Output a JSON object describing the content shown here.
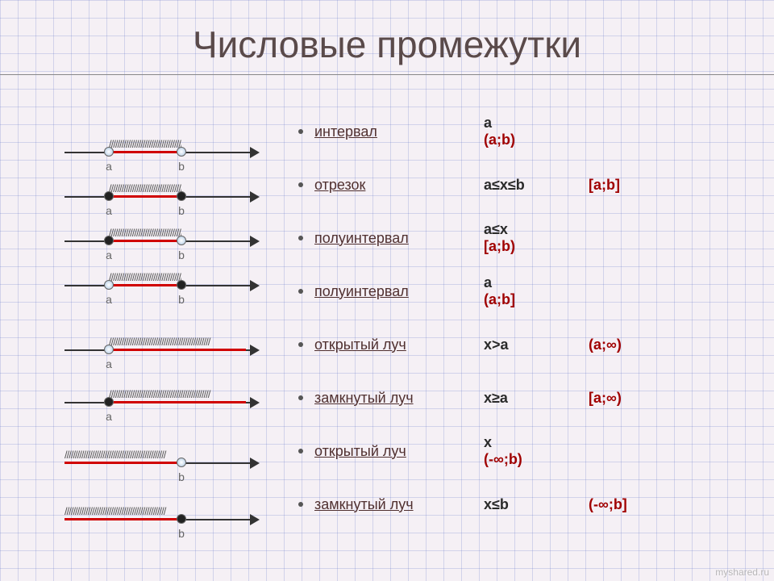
{
  "title": "Числовые промежутки",
  "watermark": "myshared.ru",
  "layout": {
    "diagram_x_a": 55,
    "diagram_x_b": 145,
    "diagram_width": 240,
    "diagram_heights": [
      40,
      95,
      150,
      205,
      285,
      350,
      425,
      495
    ]
  },
  "colors": {
    "axis": "#333333",
    "segment": "#d00000",
    "notation": "#a00000",
    "label": "#666666",
    "title": "#5a4a4a"
  },
  "rows": [
    {
      "name": "интервал",
      "inequality": "a<x<b",
      "notation": "(a;b)",
      "left": {
        "pos": 55,
        "type": "open",
        "label": "a"
      },
      "right": {
        "pos": 145,
        "type": "open",
        "label": "b"
      },
      "seg": [
        55,
        145
      ],
      "hatch": [
        55,
        145
      ]
    },
    {
      "name": "отрезок",
      "inequality": "a≤x≤b",
      "notation": "[a;b]",
      "left": {
        "pos": 55,
        "type": "closed",
        "label": "a"
      },
      "right": {
        "pos": 145,
        "type": "closed",
        "label": "b"
      },
      "seg": [
        55,
        145
      ],
      "hatch": [
        55,
        145
      ]
    },
    {
      "name": "полуинтервал",
      "inequality": "a≤x<b",
      "notation": "[a;b)",
      "left": {
        "pos": 55,
        "type": "closed",
        "label": "a"
      },
      "right": {
        "pos": 145,
        "type": "open",
        "label": "b"
      },
      "seg": [
        55,
        145
      ],
      "hatch": [
        55,
        145
      ]
    },
    {
      "name": "полуинтервал",
      "inequality": "a<x≤b",
      "notation": "(a;b]",
      "left": {
        "pos": 55,
        "type": "open",
        "label": "a"
      },
      "right": {
        "pos": 145,
        "type": "closed",
        "label": "b"
      },
      "seg": [
        55,
        145
      ],
      "hatch": [
        55,
        145
      ]
    },
    {
      "name": "открытый луч",
      "inequality": "x>a",
      "notation": "(a;∞)",
      "left": {
        "pos": 55,
        "type": "open",
        "label": "a"
      },
      "right": null,
      "seg": [
        55,
        225
      ],
      "hatch": [
        55,
        225
      ]
    },
    {
      "name": "замкнутый луч",
      "inequality": "x≥a",
      "notation": "[a;∞)",
      "left": {
        "pos": 55,
        "type": "closed",
        "label": "a"
      },
      "right": null,
      "seg": [
        55,
        225
      ],
      "hatch": [
        55,
        225
      ]
    },
    {
      "name": "открытый луч",
      "inequality": "x<b",
      "notation": "(-∞;b)",
      "left": null,
      "right": {
        "pos": 145,
        "type": "open",
        "label": "b"
      },
      "seg": [
        0,
        145
      ],
      "hatch": [
        0,
        145
      ]
    },
    {
      "name": "замкнутый луч",
      "inequality": "x≤b",
      "notation": "(-∞;b]",
      "left": null,
      "right": {
        "pos": 145,
        "type": "closed",
        "label": "b"
      },
      "seg": [
        0,
        145
      ],
      "hatch": [
        0,
        145
      ]
    }
  ]
}
